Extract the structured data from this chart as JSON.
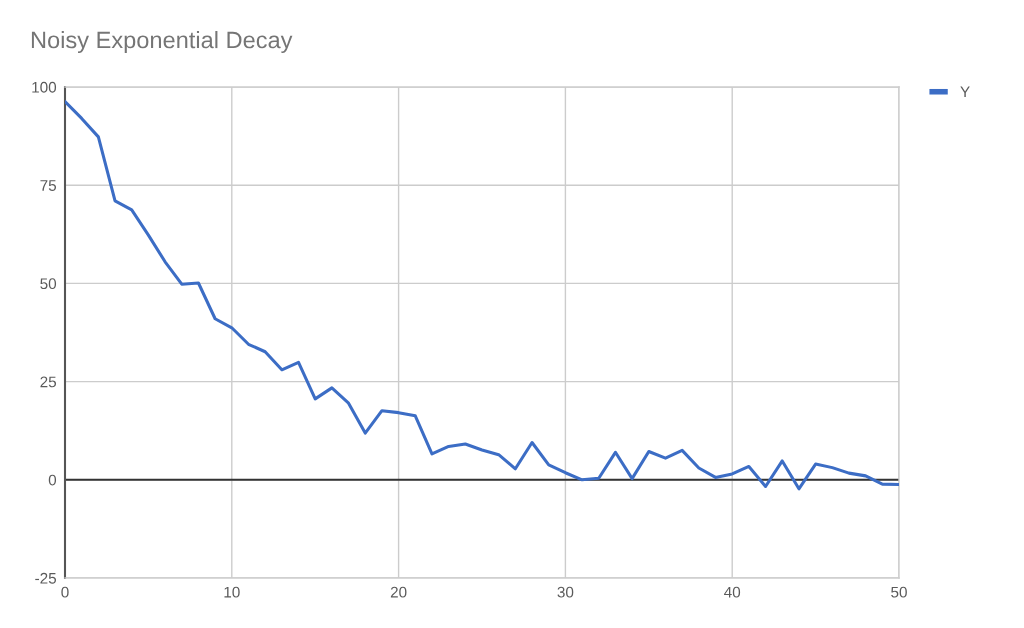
{
  "chart_data": {
    "type": "line",
    "title": "Noisy Exponential Decay",
    "x": [
      0,
      1,
      2,
      3,
      4,
      5,
      6,
      7,
      8,
      9,
      10,
      11,
      12,
      13,
      14,
      15,
      16,
      17,
      18,
      19,
      20,
      21,
      22,
      23,
      24,
      25,
      26,
      27,
      28,
      29,
      30,
      31,
      32,
      33,
      34,
      35,
      36,
      37,
      38,
      39,
      40,
      41,
      42,
      43,
      44,
      45,
      46,
      47,
      48,
      49,
      50
    ],
    "series": [
      {
        "name": "Y",
        "color": "#3c6dc5",
        "values": [
          96.3,
          92,
          87.3,
          71,
          68.7,
          62.3,
          55.5,
          49.8,
          50.1,
          41,
          38.7,
          34.5,
          32.6,
          28,
          29.9,
          20.6,
          23.4,
          19.5,
          11.9,
          17.6,
          17.1,
          16.3,
          6.6,
          8.5,
          9.1,
          7.6,
          6.4,
          2.8,
          9.5,
          3.8,
          1.8,
          0,
          0.4,
          7,
          0.3,
          7.2,
          5.5,
          7.5,
          3,
          0.6,
          1.5,
          3.4,
          -1.7,
          4.8,
          -2.3,
          4,
          3.1,
          1.7,
          1,
          -1.1,
          -1.2
        ]
      }
    ],
    "xlim": [
      0,
      50
    ],
    "ylim": [
      -25,
      100
    ],
    "xticks": [
      0,
      10,
      20,
      30,
      40,
      50
    ],
    "yticks": [
      -25,
      0,
      25,
      50,
      75,
      100
    ],
    "grid": true,
    "legend": "top right",
    "line_style": "solid",
    "ref_lines": [
      {
        "axis": "y",
        "value": 0,
        "color": "#333333"
      }
    ]
  }
}
